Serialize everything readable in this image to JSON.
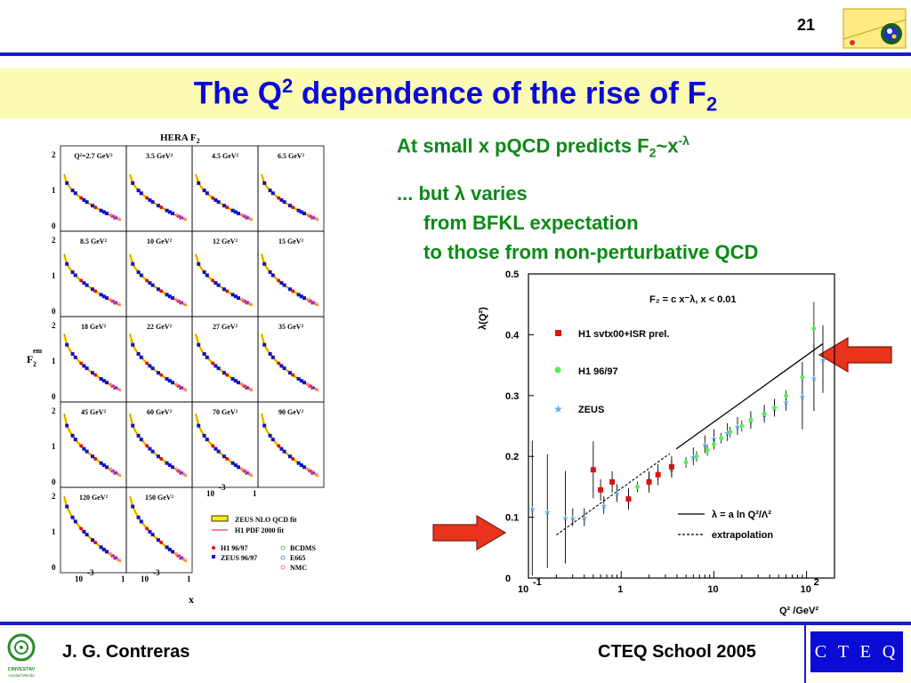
{
  "header": {
    "page_number": "21"
  },
  "title": {
    "prefix": "The Q",
    "sup": "2",
    "middle": " dependence of the rise of F",
    "sub": "2"
  },
  "text": {
    "line1_prefix": "At small x pQCD predicts F",
    "line1_sub": "2",
    "line1_mid": "~x",
    "line1_sup": "-λ",
    "line2": "... but λ varies",
    "line3": "from BFKL expectation",
    "line4": "to those from non-perturbative QCD"
  },
  "footer": {
    "left": "J. G. Contreras",
    "right": "CTEQ School 2005",
    "logo_text": "C T E Q",
    "left_logo_text": "CINVESTAV",
    "left_logo_sub": "Unidad Mérida"
  },
  "left_figure": {
    "title": "HERA F",
    "title_sub": "2",
    "ylabel": "F",
    "ylabel_sup": "em",
    "ylabel_sub": "2",
    "xlabel": "x",
    "y_ticks": [
      "2",
      "1",
      "0"
    ],
    "x_ticks": [
      "10",
      "-3",
      "1"
    ],
    "panels": [
      "Q²=2.7 GeV²",
      "3.5 GeV²",
      "4.5 GeV²",
      "6.5 GeV²",
      "8.5 GeV²",
      "10 GeV²",
      "12 GeV²",
      "15 GeV²",
      "18 GeV²",
      "22 GeV²",
      "27 GeV²",
      "35 GeV²",
      "45 GeV²",
      "60 GeV²",
      "70 GeV²",
      "90 GeV²",
      "120 GeV²",
      "150 GeV²"
    ],
    "legend": [
      "ZEUS NLO QCD fit",
      "H1 PDF 2000 fit",
      "H1 96/97",
      "ZEUS 96/97",
      "BCDMS",
      "E665",
      "NMC"
    ],
    "colors": {
      "h1": "#dd1111",
      "zeus": "#1111cc",
      "fit_band": "#ffee00",
      "other": "#ff66cc"
    }
  },
  "chart_data": {
    "type": "scatter",
    "ylabel": "λ(Q²)",
    "xlabel": "Q² /GeV²",
    "xscale": "log",
    "xlim": [
      0.1,
      200
    ],
    "ylim": [
      0,
      0.5
    ],
    "x_ticks": [
      "10",
      "-1",
      "1",
      "10",
      "10",
      "2"
    ],
    "y_ticks": [
      "0",
      "0.1",
      "0.2",
      "0.3",
      "0.4",
      "0.5"
    ],
    "annotation": "F₂ = c x⁻λ,  x < 0.01",
    "legend_position": "top-left",
    "series": [
      {
        "name": "H1 svtx00+ISR prel.",
        "color": "#dd1111",
        "x": [
          0.5,
          0.6,
          0.8,
          1.2,
          2.0,
          2.5,
          3.5
        ],
        "y": [
          0.178,
          0.145,
          0.158,
          0.13,
          0.158,
          0.17,
          0.183
        ]
      },
      {
        "name": "H1 96/97",
        "color": "#55ee55",
        "x": [
          1.5,
          2.0,
          2.5,
          3.5,
          5.0,
          6.5,
          8.5,
          10,
          12,
          15,
          20,
          25,
          35,
          45,
          60,
          90,
          120
        ],
        "y": [
          0.15,
          0.16,
          0.17,
          0.18,
          0.19,
          0.2,
          0.21,
          0.22,
          0.23,
          0.24,
          0.25,
          0.26,
          0.27,
          0.28,
          0.3,
          0.33,
          0.41
        ]
      },
      {
        "name": "ZEUS",
        "color": "#66aaee",
        "x": [
          0.11,
          0.16,
          0.25,
          0.3,
          0.4,
          0.65,
          0.9,
          1.2,
          2.0,
          3.5,
          6.0,
          8.0,
          10,
          14,
          18,
          25,
          35,
          45,
          60,
          90,
          120,
          150
        ],
        "y": [
          0.115,
          0.11,
          0.1,
          0.1,
          0.1,
          0.12,
          0.14,
          0.13,
          0.16,
          0.18,
          0.2,
          0.22,
          0.23,
          0.24,
          0.25,
          0.26,
          0.27,
          0.28,
          0.29,
          0.3,
          0.33,
          0.36
        ]
      }
    ],
    "lines": [
      {
        "name": "λ = a ln Q²/Λ²",
        "style": "solid"
      },
      {
        "name": "extrapolation",
        "style": "dashed"
      }
    ]
  }
}
